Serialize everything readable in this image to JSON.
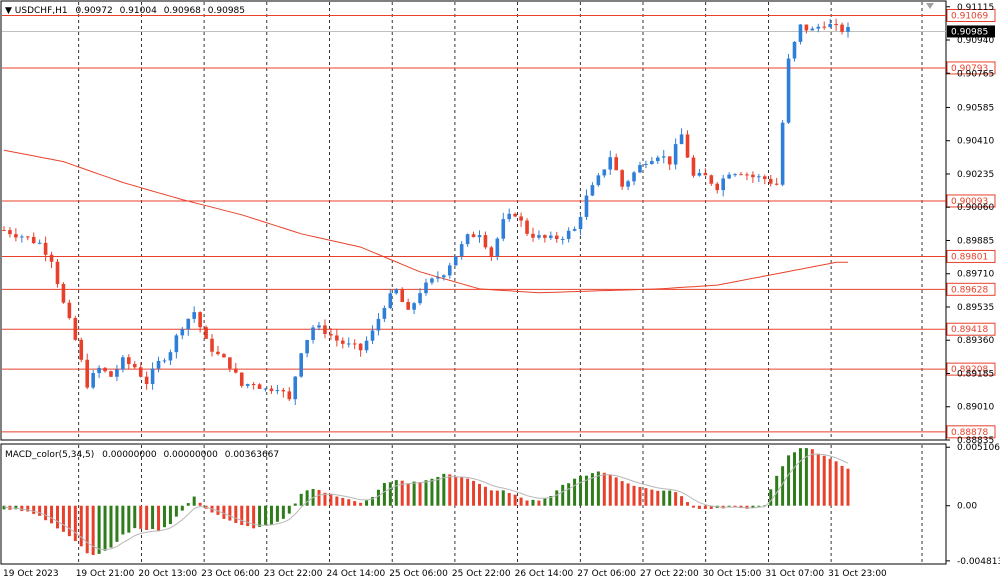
{
  "header": {
    "symbol": "USDCHF,H1",
    "open": "0.90972",
    "high": "0.91004",
    "low": "0.90968",
    "close": "0.90985"
  },
  "macd_header": {
    "name": "MACD_color(5,34,5)",
    "v1": "0.00000000",
    "v2": "0.00000000",
    "v3": "0.00363667"
  },
  "chart_data": [
    {
      "type": "candlestick",
      "title": "USDCHF,H1",
      "y_ticks": [
        "0.91115",
        "0.90940",
        "0.90765",
        "0.90585",
        "0.90410",
        "0.90235",
        "0.90060",
        "0.89885",
        "0.89710",
        "0.89535",
        "0.89360",
        "0.89185",
        "0.89010",
        "0.88835"
      ],
      "ylim": [
        0.88835,
        0.9114
      ],
      "x_labels": [
        "19 Oct 2023",
        "19 Oct 21:00",
        "20 Oct 13:00",
        "23 Oct 06:00",
        "23 Oct 22:00",
        "24 Oct 14:00",
        "25 Oct 06:00",
        "25 Oct 22:00",
        "26 Oct 14:00",
        "27 Oct 06:00",
        "27 Oct 22:00",
        "30 Oct 15:00",
        "31 Oct 07:00",
        "31 Oct 23:00"
      ],
      "price_levels": [
        "0.91069",
        "0.90793",
        "0.90093",
        "0.89801",
        "0.89628",
        "0.89418",
        "0.89208",
        "0.88878"
      ],
      "current_price": "0.90985",
      "close_path": [
        [
          0,
          0.8994
        ],
        [
          3,
          0.8991
        ],
        [
          6,
          0.8987
        ],
        [
          8,
          0.8979
        ],
        [
          10,
          0.8955
        ],
        [
          12,
          0.8936
        ],
        [
          14,
          0.8913
        ],
        [
          16,
          0.8921
        ],
        [
          18,
          0.8917
        ],
        [
          20,
          0.8925
        ],
        [
          22,
          0.8922
        ],
        [
          24,
          0.8914
        ],
        [
          26,
          0.8924
        ],
        [
          28,
          0.8931
        ],
        [
          30,
          0.8944
        ],
        [
          32,
          0.8951
        ],
        [
          34,
          0.8935
        ],
        [
          36,
          0.8928
        ],
        [
          38,
          0.8923
        ],
        [
          40,
          0.8912
        ],
        [
          42,
          0.8914
        ],
        [
          44,
          0.891
        ],
        [
          46,
          0.8912
        ],
        [
          48,
          0.8904
        ],
        [
          50,
          0.8931
        ],
        [
          52,
          0.8943
        ],
        [
          54,
          0.8941
        ],
        [
          56,
          0.8936
        ],
        [
          58,
          0.8933
        ],
        [
          60,
          0.8931
        ],
        [
          62,
          0.894
        ],
        [
          64,
          0.8955
        ],
        [
          66,
          0.8962
        ],
        [
          68,
          0.895
        ],
        [
          70,
          0.8962
        ],
        [
          72,
          0.8967
        ],
        [
          74,
          0.8972
        ],
        [
          76,
          0.8981
        ],
        [
          78,
          0.899
        ],
        [
          80,
          0.8993
        ],
        [
          82,
          0.8981
        ],
        [
          84,
          0.8998
        ],
        [
          86,
          0.9003
        ],
        [
          88,
          0.8993
        ],
        [
          90,
          0.899
        ],
        [
          92,
          0.8989
        ],
        [
          94,
          0.8991
        ],
        [
          96,
          0.8994
        ],
        [
          98,
          0.9011
        ],
        [
          100,
          0.9021
        ],
        [
          102,
          0.9033
        ],
        [
          104,
          0.9017
        ],
        [
          106,
          0.9024
        ],
        [
          108,
          0.9031
        ],
        [
          110,
          0.9034
        ],
        [
          112,
          0.903
        ],
        [
          114,
          0.9044
        ],
        [
          116,
          0.9022
        ],
        [
          118,
          0.9022
        ],
        [
          120,
          0.9017
        ],
        [
          122,
          0.9025
        ],
        [
          124,
          0.9025
        ],
        [
          126,
          0.9022
        ],
        [
          128,
          0.9021
        ],
        [
          130,
          0.9018
        ],
        [
          132,
          0.9083
        ],
        [
          134,
          0.9101
        ],
        [
          136,
          0.9099
        ],
        [
          138,
          0.9103
        ],
        [
          140,
          0.91
        ],
        [
          142,
          0.9099
        ]
      ],
      "moving_average": {
        "color": "#e8432b",
        "path": [
          [
            0,
            0.9036
          ],
          [
            10,
            0.903
          ],
          [
            20,
            0.9019
          ],
          [
            30,
            0.901
          ],
          [
            40,
            0.9002
          ],
          [
            50,
            0.8992
          ],
          [
            60,
            0.8985
          ],
          [
            70,
            0.8972
          ],
          [
            80,
            0.8963
          ],
          [
            90,
            0.8961
          ],
          [
            100,
            0.8962
          ],
          [
            110,
            0.8963
          ],
          [
            120,
            0.8965
          ],
          [
            130,
            0.8971
          ],
          [
            140,
            0.8977
          ]
        ]
      }
    },
    {
      "type": "histogram",
      "title": "MACD_color(5,34,5)",
      "y_ticks": [
        "0.0051067",
        "0.00",
        "-0.0048139"
      ],
      "ylim": [
        -0.005,
        0.0053
      ],
      "colors": {
        "up": "#2e7d1a",
        "down": "#e8402b",
        "signal": "#b8b8b8"
      },
      "histogram": [
        [
          0,
          -0.0003
        ],
        [
          3,
          -0.0004
        ],
        [
          6,
          -0.0009
        ],
        [
          9,
          -0.0019
        ],
        [
          12,
          -0.003
        ],
        [
          14,
          -0.0041
        ],
        [
          16,
          -0.0043
        ],
        [
          18,
          -0.0036
        ],
        [
          20,
          -0.0026
        ],
        [
          22,
          -0.002
        ],
        [
          24,
          -0.0021
        ],
        [
          26,
          -0.0021
        ],
        [
          28,
          -0.0015
        ],
        [
          30,
          -0.0005
        ],
        [
          32,
          0.0009
        ],
        [
          34,
          -0.0002
        ],
        [
          36,
          -0.0009
        ],
        [
          38,
          -0.0012
        ],
        [
          40,
          -0.0017
        ],
        [
          42,
          -0.0019
        ],
        [
          44,
          -0.0017
        ],
        [
          46,
          -0.0014
        ],
        [
          48,
          -0.0007
        ],
        [
          50,
          0.001
        ],
        [
          52,
          0.0015
        ],
        [
          54,
          0.0011
        ],
        [
          56,
          0.0009
        ],
        [
          58,
          0.0006
        ],
        [
          60,
          0.0002
        ],
        [
          62,
          0.0007
        ],
        [
          64,
          0.0019
        ],
        [
          66,
          0.0023
        ],
        [
          68,
          0.002
        ],
        [
          70,
          0.0021
        ],
        [
          72,
          0.0024
        ],
        [
          74,
          0.0027
        ],
        [
          76,
          0.0026
        ],
        [
          78,
          0.0024
        ],
        [
          80,
          0.0018
        ],
        [
          82,
          0.0014
        ],
        [
          84,
          0.0013
        ],
        [
          86,
          0.0009
        ],
        [
          88,
          0.0005
        ],
        [
          90,
          0.0004
        ],
        [
          92,
          0.0008
        ],
        [
          94,
          0.0018
        ],
        [
          96,
          0.0023
        ],
        [
          98,
          0.0027
        ],
        [
          100,
          0.003
        ],
        [
          102,
          0.0028
        ],
        [
          104,
          0.0022
        ],
        [
          106,
          0.0018
        ],
        [
          108,
          0.0016
        ],
        [
          110,
          0.0013
        ],
        [
          112,
          0.0014
        ],
        [
          114,
          0.0009
        ],
        [
          116,
          -0.0001
        ],
        [
          118,
          -0.0003
        ],
        [
          120,
          -0.0002
        ],
        [
          122,
          -0.0001
        ],
        [
          124,
          -0.0003
        ],
        [
          126,
          -0.0002
        ],
        [
          128,
          0.0001
        ],
        [
          130,
          0.0026
        ],
        [
          132,
          0.0044
        ],
        [
          134,
          0.0051
        ],
        [
          136,
          0.0049
        ],
        [
          138,
          0.0043
        ],
        [
          140,
          0.0038
        ],
        [
          142,
          0.0032
        ]
      ]
    }
  ]
}
